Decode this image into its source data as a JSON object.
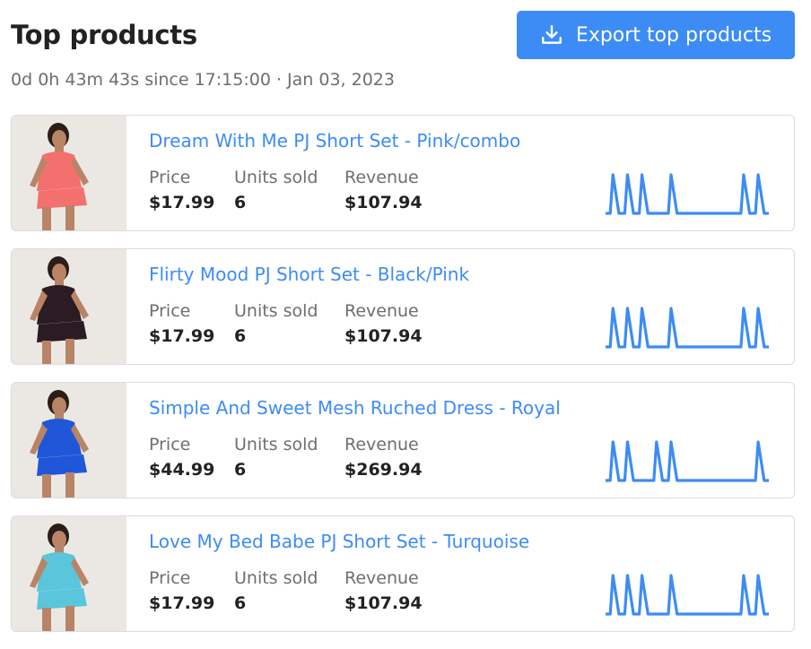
{
  "header": {
    "title": "Top products",
    "subtitle": "0d 0h 43m 43s since 17:15:00 · Jan 03, 2023",
    "export_label": "Export top products",
    "export_icon": "download-icon"
  },
  "labels": {
    "price": "Price",
    "units": "Units sold",
    "revenue": "Revenue"
  },
  "colors": {
    "accent": "#3d8cf5"
  },
  "products": [
    {
      "name": "Dream With Me PJ Short Set - Pink/combo",
      "price": "$17.99",
      "units": "6",
      "revenue": "$107.94",
      "image_color": "#f4706f",
      "spark_pulses": [
        1,
        1,
        1,
        0,
        1,
        0,
        0,
        0,
        0,
        1,
        1
      ]
    },
    {
      "name": "Flirty Mood PJ Short Set - Black/Pink",
      "price": "$17.99",
      "units": "6",
      "revenue": "$107.94",
      "image_color": "#2a1c22",
      "spark_pulses": [
        1,
        1,
        1,
        0,
        1,
        0,
        0,
        0,
        0,
        1,
        1
      ]
    },
    {
      "name": "Simple And Sweet Mesh Ruched Dress - Royal",
      "price": "$44.99",
      "units": "6",
      "revenue": "$269.94",
      "image_color": "#1f57d8",
      "spark_pulses": [
        1,
        1,
        0,
        1,
        1,
        0,
        0,
        0,
        0,
        0,
        1
      ]
    },
    {
      "name": "Love My Bed Babe PJ Short Set - Turquoise",
      "price": "$17.99",
      "units": "6",
      "revenue": "$107.94",
      "image_color": "#59c6dc",
      "spark_pulses": [
        1,
        1,
        1,
        0,
        1,
        0,
        0,
        0,
        0,
        1,
        1
      ]
    }
  ]
}
